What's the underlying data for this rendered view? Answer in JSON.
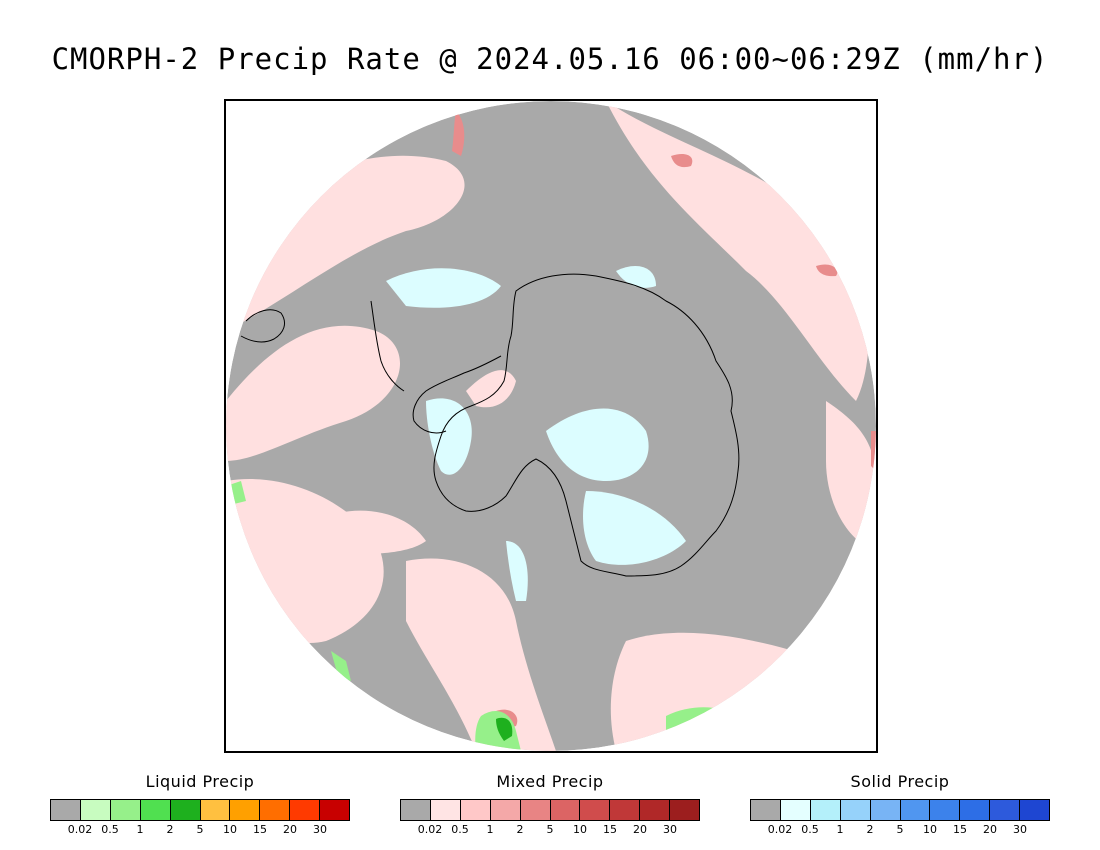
{
  "title": "CMORPH-2 Precip Rate @ 2024.05.16 06:00~06:29Z (mm/hr)",
  "map": {
    "projection": "south-polar-stereographic",
    "background_color": "#a9a9a9",
    "coastline_color": "#000000"
  },
  "legends": [
    {
      "id": "liquid",
      "title": "Liquid Precip",
      "colors": [
        "#a9a9a9",
        "#c8fcc0",
        "#96f08a",
        "#50e050",
        "#1eb01e",
        "#ffc040",
        "#ffa000",
        "#ff6e00",
        "#ff3a00",
        "#c80000"
      ],
      "ticks": [
        "0.02",
        "0.5",
        "1",
        "2",
        "5",
        "10",
        "15",
        "20",
        "30"
      ]
    },
    {
      "id": "mixed",
      "title": "Mixed Precip",
      "colors": [
        "#a9a9a9",
        "#ffe4e4",
        "#ffc8c8",
        "#f4a8a8",
        "#e88484",
        "#dc6464",
        "#d04c4c",
        "#c03838",
        "#b02828",
        "#9c1e1e"
      ],
      "ticks": [
        "0.02",
        "0.5",
        "1",
        "2",
        "5",
        "10",
        "15",
        "20",
        "30"
      ]
    },
    {
      "id": "solid",
      "title": "Solid Precip",
      "colors": [
        "#a9a9a9",
        "#e4ffff",
        "#b4f0fa",
        "#96d2fa",
        "#78b4f5",
        "#5096f0",
        "#3c82eb",
        "#2d6ee6",
        "#2d5adc",
        "#1e46d2"
      ],
      "ticks": [
        "0.02",
        "0.5",
        "1",
        "2",
        "5",
        "10",
        "15",
        "20",
        "30"
      ]
    }
  ]
}
